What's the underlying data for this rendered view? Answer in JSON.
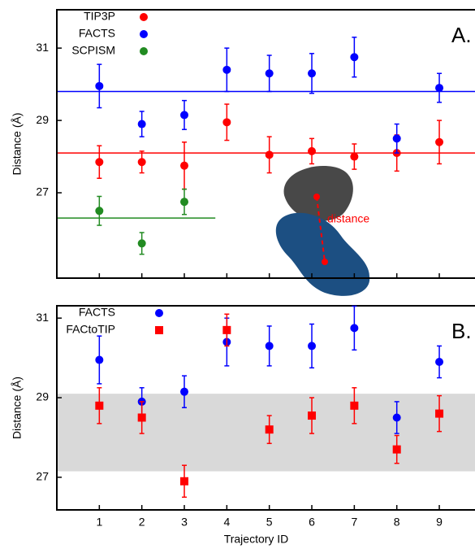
{
  "chart_data": [
    {
      "type": "scatter",
      "panel_label": "A.",
      "ylabel": "Distance (Å)",
      "xlim": [
        0,
        9.84
      ],
      "ylim": [
        24.64,
        32.06
      ],
      "xticks": [
        1,
        2,
        3,
        4,
        5,
        6,
        7,
        8,
        9
      ],
      "yticks": [
        27,
        29,
        31
      ],
      "xtick_labels": false,
      "x": [
        1,
        2,
        3,
        4,
        5,
        6,
        7,
        8,
        9
      ],
      "legend": "upper left",
      "series": [
        {
          "name": "TIP3P",
          "color": "#ff0000",
          "marker": "circle",
          "values": [
            27.85,
            27.85,
            27.75,
            28.95,
            28.05,
            28.15,
            28.0,
            28.1,
            28.4
          ],
          "errors": [
            0.45,
            0.3,
            0.65,
            0.5,
            0.5,
            0.35,
            0.35,
            0.5,
            0.6
          ]
        },
        {
          "name": "FACTS",
          "color": "#0000ff",
          "marker": "circle",
          "values": [
            29.95,
            28.9,
            29.15,
            30.4,
            30.3,
            30.3,
            30.75,
            28.5,
            29.9
          ],
          "errors": [
            0.6,
            0.35,
            0.4,
            0.6,
            0.5,
            0.55,
            0.55,
            0.4,
            0.4
          ]
        },
        {
          "name": "SCPISM",
          "color": "#228b22",
          "marker": "circle",
          "values": [
            26.5,
            25.6,
            26.75,
            null,
            null,
            null,
            null,
            null,
            null
          ],
          "errors": [
            0.4,
            0.3,
            0.35,
            null,
            null,
            null,
            null,
            null,
            null
          ]
        }
      ],
      "hlines": [
        {
          "value": 29.8,
          "color": "#0000ff",
          "xmax": 9.84
        },
        {
          "value": 28.1,
          "color": "#ff0000",
          "xmax": 9.84
        },
        {
          "value": 26.3,
          "color": "#228b22",
          "xmax": 3.73
        }
      ],
      "annotation": "distance"
    },
    {
      "type": "scatter",
      "panel_label": "B.",
      "ylabel": "Distance (Å)",
      "xlabel": "Trajectory ID",
      "xlim": [
        0,
        9.84
      ],
      "ylim": [
        26.18,
        31.31
      ],
      "xticks": [
        1,
        2,
        3,
        4,
        5,
        6,
        7,
        8,
        9
      ],
      "yticks": [
        27,
        29,
        31
      ],
      "xtick_labels": true,
      "x": [
        1,
        2,
        3,
        4,
        5,
        6,
        7,
        8,
        9
      ],
      "legend": "upper left",
      "band": {
        "range": [
          27.15,
          29.1
        ],
        "color": "#d9d9d9"
      },
      "series": [
        {
          "name": "FACTS",
          "color": "#0000ff",
          "marker": "circle",
          "values": [
            29.95,
            28.9,
            29.15,
            30.4,
            30.3,
            30.3,
            30.75,
            28.5,
            29.9
          ],
          "errors": [
            0.6,
            0.35,
            0.4,
            0.6,
            0.5,
            0.55,
            0.55,
            0.4,
            0.4
          ]
        },
        {
          "name": "FACtoTIP",
          "color": "#ff0000",
          "marker": "square",
          "values": [
            28.8,
            28.5,
            26.9,
            30.7,
            28.2,
            28.55,
            28.8,
            27.7,
            28.6
          ],
          "errors": [
            0.45,
            0.4,
            0.4,
            0.4,
            0.35,
            0.45,
            0.45,
            0.35,
            0.45
          ]
        }
      ]
    }
  ]
}
